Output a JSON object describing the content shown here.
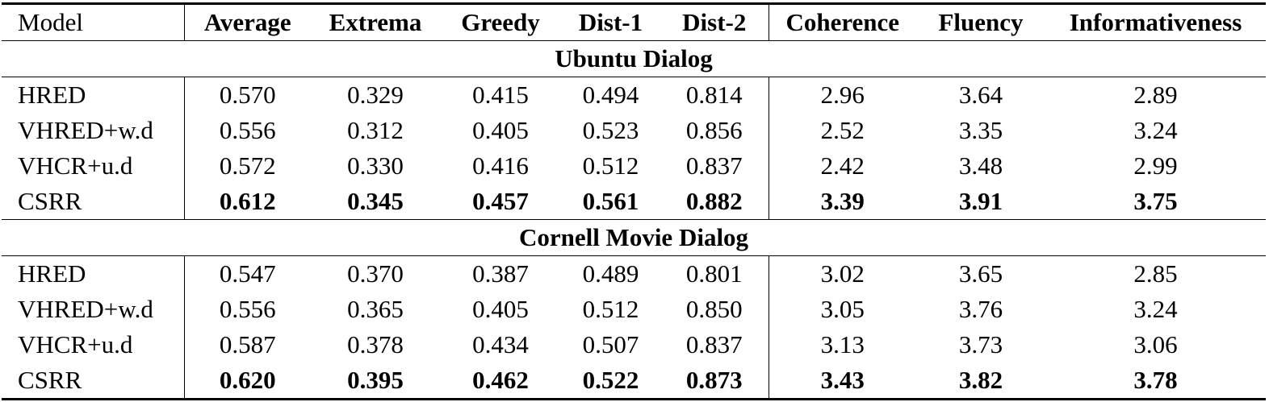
{
  "table": {
    "header": [
      "Model",
      "Average",
      "Extrema",
      "Greedy",
      "Dist-1",
      "Dist-2",
      "Coherence",
      "Fluency",
      "Informativeness"
    ],
    "sections": [
      {
        "title": "Ubuntu Dialog",
        "rows": [
          [
            "HRED",
            "0.570",
            "0.329",
            "0.415",
            "0.494",
            "0.814",
            "2.96",
            "3.64",
            "2.89"
          ],
          [
            "VHRED+w.d",
            "0.556",
            "0.312",
            "0.405",
            "0.523",
            "0.856",
            "2.52",
            "3.35",
            "3.24"
          ],
          [
            "VHCR+u.d",
            "0.572",
            "0.330",
            "0.416",
            "0.512",
            "0.837",
            "2.42",
            "3.48",
            "2.99"
          ],
          [
            "CSRR",
            "0.612",
            "0.345",
            "0.457",
            "0.561",
            "0.882",
            "3.39",
            "3.91",
            "3.75"
          ]
        ]
      },
      {
        "title": "Cornell Movie Dialog",
        "rows": [
          [
            "HRED",
            "0.547",
            "0.370",
            "0.387",
            "0.489",
            "0.801",
            "3.02",
            "3.65",
            "2.85"
          ],
          [
            "VHRED+w.d",
            "0.556",
            "0.365",
            "0.405",
            "0.512",
            "0.850",
            "3.05",
            "3.76",
            "3.24"
          ],
          [
            "VHCR+u.d",
            "0.587",
            "0.378",
            "0.434",
            "0.507",
            "0.837",
            "3.13",
            "3.73",
            "3.06"
          ],
          [
            "CSRR",
            "0.620",
            "0.395",
            "0.462",
            "0.522",
            "0.873",
            "3.43",
            "3.82",
            "3.78"
          ]
        ]
      }
    ]
  }
}
